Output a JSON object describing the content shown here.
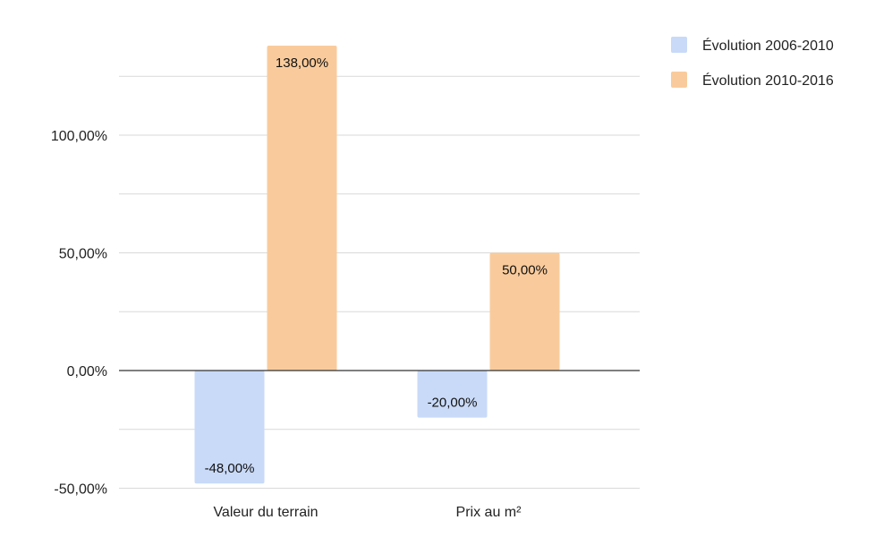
{
  "chart_data": {
    "type": "bar",
    "categories": [
      "Valeur du terrain",
      "Prix au m²"
    ],
    "series": [
      {
        "name": "Évolution 2006-2010",
        "values": [
          -48,
          -20
        ],
        "labels": [
          "-48,00%",
          "-20,00%"
        ],
        "color": "#c9daf8"
      },
      {
        "name": "Évolution 2010-2016",
        "values": [
          138,
          50
        ],
        "labels": [
          "138,00%",
          "50,00%"
        ],
        "color": "#f9cb9c"
      }
    ],
    "y_ticks": [
      {
        "value": -50,
        "label": "-50,00%"
      },
      {
        "value": 0,
        "label": "0,00%"
      },
      {
        "value": 50,
        "label": "50,00%"
      },
      {
        "value": 100,
        "label": "100,00%"
      }
    ],
    "ylim": [
      -50,
      150
    ],
    "minor_grid_values": [
      -25,
      25,
      75,
      125
    ],
    "grid": true,
    "legend_position": "top-right",
    "title": "",
    "xlabel": "",
    "ylabel": ""
  }
}
